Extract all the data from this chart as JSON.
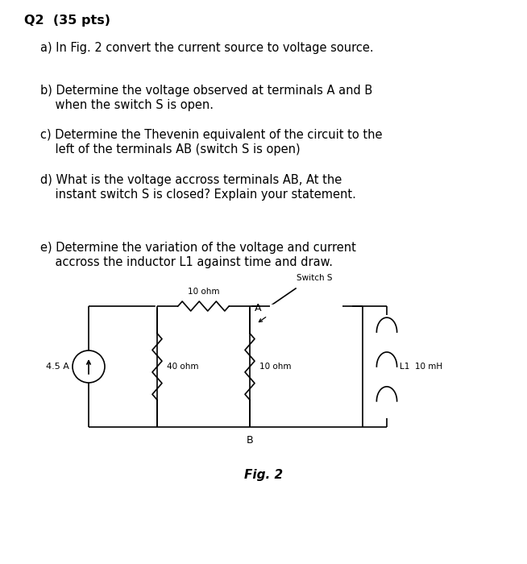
{
  "title": "Q2  (35 pts)",
  "q_a": "a) In Fig. 2 convert the current source to voltage source.",
  "q_b_1": "b) Determine the voltage observed at terminals A and B",
  "q_b_2": "    when the switch S is open.",
  "q_c_1": "c) Determine the Thevenin equivalent of the circuit to the",
  "q_c_2": "    left of the terminals AB (switch S is open)",
  "q_d_1": "d) What is the voltage accross terminals AB, At the",
  "q_d_2": "    instant switch S is closed? Explain your statement.",
  "q_e_1": "e) Determine the variation of the voltage and current",
  "q_e_2": "    accross the inductor L1 against time and draw.",
  "fig_label": "Fig. 2",
  "background_color": "#ffffff",
  "text_color": "#000000",
  "font_size_title": 11.5,
  "font_size_text": 10.5,
  "circuit_current_source": "4.5 A",
  "circuit_r1_label": "40 ohm",
  "circuit_r2_label": "10 ohm",
  "circuit_r3_label": "10 ohm",
  "circuit_L1_label": "L1  10 mH",
  "circuit_switch": "Switch S",
  "terminal_A": "A",
  "terminal_B": "B"
}
